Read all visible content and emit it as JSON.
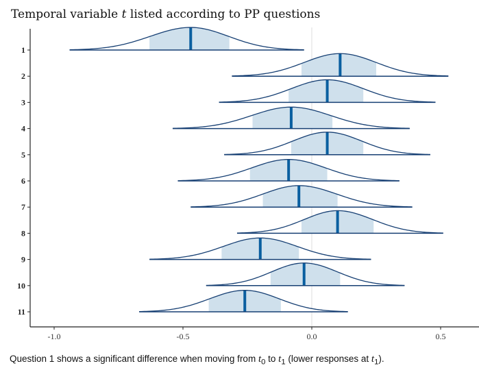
{
  "chart_data": {
    "type": "ridgeline",
    "title": "Temporal variable t listed according to PP questions",
    "categories": [
      "1",
      "2",
      "3",
      "4",
      "5",
      "6",
      "7",
      "8",
      "9",
      "10",
      "11"
    ],
    "x_ticks": [
      "-1.0",
      "-0.5",
      "0.0",
      "0.5"
    ],
    "xlim": [
      -1.1,
      0.65
    ],
    "reference_line": 0.0,
    "series": [
      {
        "label": "1",
        "median": -0.47,
        "ci": [
          -0.63,
          -0.32
        ],
        "range": [
          -0.94,
          -0.03
        ],
        "peak_height": 1.0
      },
      {
        "label": "2",
        "median": 0.11,
        "ci": [
          -0.04,
          0.25
        ],
        "range": [
          -0.31,
          0.53
        ],
        "peak_height": 1.0
      },
      {
        "label": "3",
        "median": 0.06,
        "ci": [
          -0.09,
          0.2
        ],
        "range": [
          -0.36,
          0.48
        ],
        "peak_height": 1.0
      },
      {
        "label": "4",
        "median": -0.08,
        "ci": [
          -0.23,
          0.08
        ],
        "range": [
          -0.54,
          0.38
        ],
        "peak_height": 0.95
      },
      {
        "label": "5",
        "median": 0.06,
        "ci": [
          -0.08,
          0.2
        ],
        "range": [
          -0.34,
          0.46
        ],
        "peak_height": 1.0
      },
      {
        "label": "6",
        "median": -0.09,
        "ci": [
          -0.24,
          0.06
        ],
        "range": [
          -0.52,
          0.34
        ],
        "peak_height": 0.95
      },
      {
        "label": "7",
        "median": -0.05,
        "ci": [
          -0.19,
          0.1
        ],
        "range": [
          -0.47,
          0.39
        ],
        "peak_height": 0.95
      },
      {
        "label": "8",
        "median": 0.1,
        "ci": [
          -0.04,
          0.24
        ],
        "range": [
          -0.29,
          0.51
        ],
        "peak_height": 1.0
      },
      {
        "label": "9",
        "median": -0.2,
        "ci": [
          -0.35,
          -0.05
        ],
        "range": [
          -0.63,
          0.23
        ],
        "peak_height": 0.95
      },
      {
        "label": "10",
        "median": -0.03,
        "ci": [
          -0.16,
          0.11
        ],
        "range": [
          -0.41,
          0.36
        ],
        "peak_height": 1.0
      },
      {
        "label": "11",
        "median": -0.26,
        "ci": [
          -0.4,
          -0.12
        ],
        "range": [
          -0.67,
          0.14
        ],
        "peak_height": 0.95
      }
    ],
    "grid": false,
    "legend": "none"
  },
  "caption": {
    "before": "Question 1 shows a significant difference when moving from ",
    "t0": "t",
    "t0_sub": "0",
    "middle": " to ",
    "t1": "t",
    "t1_sub": "1",
    "after": " (lower responses at ",
    "t2": "t",
    "t2_sub": "1",
    "end": ")."
  },
  "colors": {
    "curve": "#163f73",
    "median": "#0a5fa0",
    "ci_fill": "#cfe0ec",
    "axis": "#222222",
    "zero_line": "#dddddd"
  }
}
